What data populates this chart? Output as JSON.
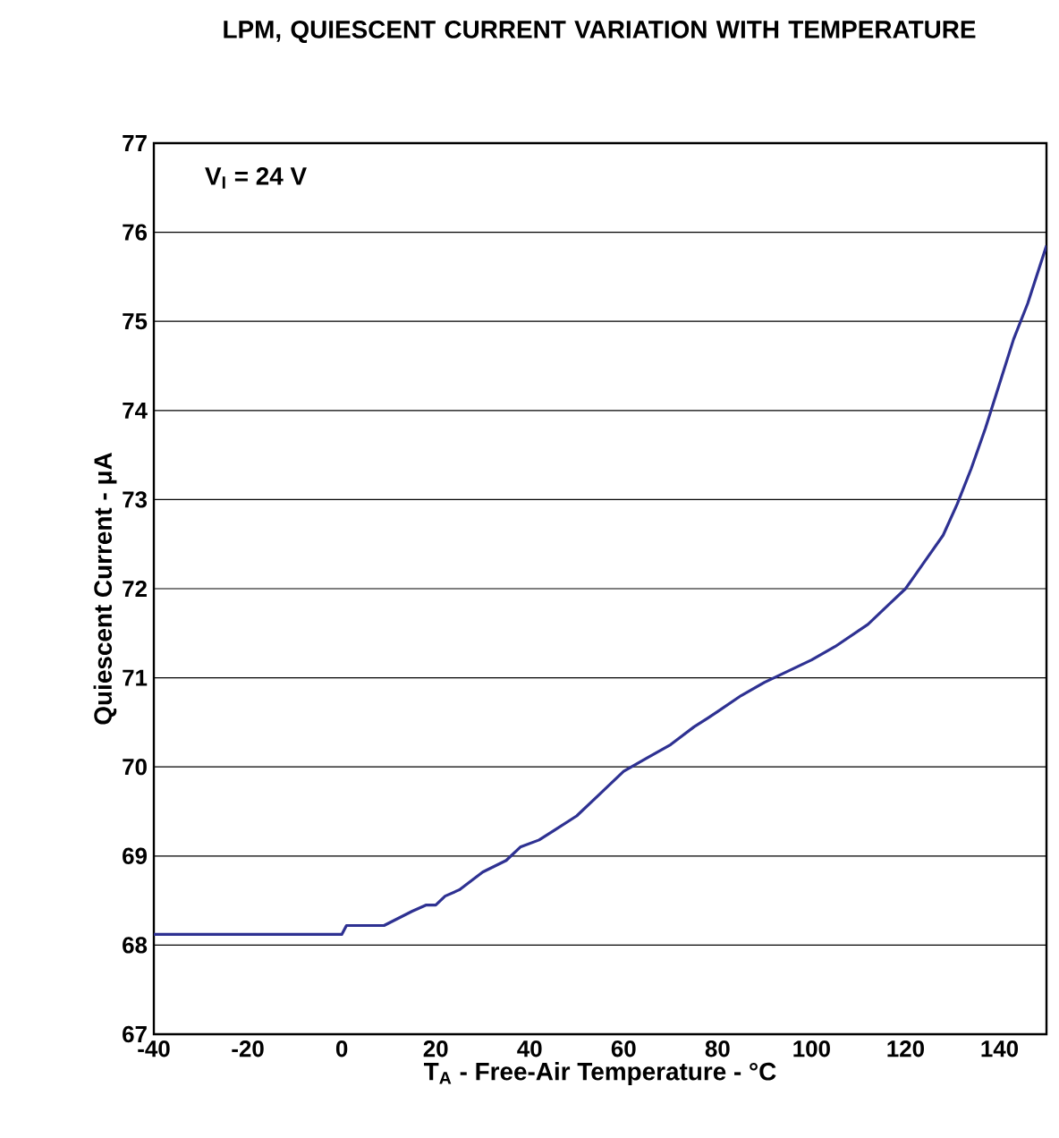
{
  "chart_data": {
    "type": "line",
    "title": "LPM, QUIESCENT CURRENT VARIATION WITH TEMPERATURE",
    "xlabel": "T$_{A}$ - Free-Air Temperature - °C",
    "ylabel": "Quiescent Current - μA",
    "annotations": [
      "V$_{I}$ = 24 V"
    ],
    "x": [
      -40,
      -20,
      0,
      1,
      9,
      15,
      18,
      20,
      22,
      25,
      30,
      35,
      38,
      42,
      45,
      50,
      55,
      60,
      65,
      70,
      75,
      78,
      80,
      85,
      90,
      100,
      105,
      112,
      116,
      120,
      124,
      128,
      131,
      134,
      137,
      140,
      143,
      146,
      150
    ],
    "series": [
      {
        "color": "#2e3192",
        "values": [
          68.12,
          68.12,
          68.12,
          68.22,
          68.22,
          68.38,
          68.45,
          68.45,
          68.55,
          68.62,
          68.82,
          68.95,
          69.1,
          69.18,
          69.28,
          69.45,
          69.7,
          69.95,
          70.1,
          70.25,
          70.45,
          70.55,
          70.62,
          70.8,
          70.95,
          71.2,
          71.35,
          71.6,
          71.8,
          72.0,
          72.3,
          72.6,
          72.95,
          73.35,
          73.8,
          74.3,
          74.8,
          75.2,
          75.85
        ]
      }
    ],
    "xlim": [
      -40,
      150
    ],
    "ylim": [
      67,
      77
    ],
    "xticks": [
      -40,
      -20,
      0,
      20,
      40,
      60,
      80,
      100,
      120,
      140
    ],
    "yticks": [
      67,
      68,
      69,
      70,
      71,
      72,
      73,
      74,
      75,
      76,
      77
    ],
    "grid": "y",
    "line_style": "solid",
    "marker": "none"
  }
}
